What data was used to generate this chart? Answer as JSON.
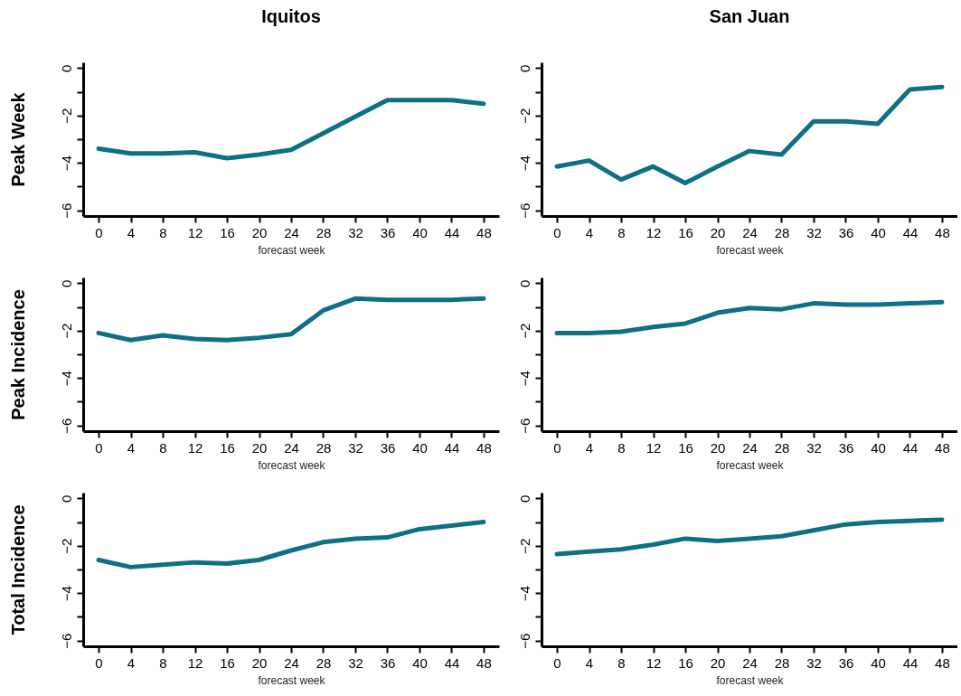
{
  "chart_data": [
    {
      "type": "line",
      "title": "Iquitos",
      "ylabel": "Peak Week",
      "xlabel": "forecast week",
      "line_style": "solid",
      "x": [
        0,
        4,
        8,
        12,
        16,
        20,
        24,
        28,
        32,
        36,
        40,
        44,
        48
      ],
      "series": [
        {
          "color": "#0e6f86",
          "values": [
            -3.4,
            -3.6,
            -3.6,
            -3.55,
            -3.8,
            -3.65,
            -3.45,
            -2.75,
            -2.05,
            -1.35,
            -1.35,
            -1.35,
            -1.5
          ]
        }
      ],
      "xlim": [
        -1.92,
        49.92
      ],
      "ylim": [
        -6.24,
        0.24
      ],
      "xticks": [
        0,
        4,
        8,
        12,
        16,
        20,
        24,
        28,
        32,
        36,
        40,
        44,
        48
      ],
      "yticks": [
        -6,
        {
          "value": -5,
          "label": null
        },
        -4,
        {
          "value": -3,
          "label": null
        },
        -2,
        {
          "value": -1,
          "label": null
        },
        0
      ]
    },
    {
      "type": "line",
      "title": "San Juan",
      "xlabel": "forecast week",
      "line_style": "solid",
      "x": [
        0,
        4,
        8,
        12,
        16,
        20,
        24,
        28,
        32,
        36,
        40,
        44,
        48
      ],
      "series": [
        {
          "color": "#0e6f86",
          "values": [
            -4.15,
            -3.9,
            -4.7,
            -4.15,
            -4.85,
            -4.15,
            -3.5,
            -3.65,
            -2.25,
            -2.25,
            -2.35,
            -0.9,
            -0.8
          ]
        }
      ],
      "xlim": [
        -1.92,
        49.92
      ],
      "ylim": [
        -6.24,
        0.24
      ],
      "xticks": [
        0,
        4,
        8,
        12,
        16,
        20,
        24,
        28,
        32,
        36,
        40,
        44,
        48
      ],
      "yticks": [
        -6,
        {
          "value": -5,
          "label": null
        },
        -4,
        {
          "value": -3,
          "label": null
        },
        -2,
        {
          "value": -1,
          "label": null
        },
        0
      ]
    },
    {
      "type": "line",
      "ylabel": "Peak Incidence",
      "xlabel": "forecast week",
      "line_style": "solid",
      "x": [
        0,
        4,
        8,
        12,
        16,
        20,
        24,
        28,
        32,
        36,
        40,
        44,
        48
      ],
      "series": [
        {
          "color": "#0e6f86",
          "values": [
            -2.1,
            -2.4,
            -2.2,
            -2.35,
            -2.4,
            -2.3,
            -2.15,
            -1.15,
            -0.65,
            -0.7,
            -0.7,
            -0.7,
            -0.65
          ]
        }
      ],
      "xlim": [
        -1.92,
        49.92
      ],
      "ylim": [
        -6.24,
        0.24
      ],
      "xticks": [
        0,
        4,
        8,
        12,
        16,
        20,
        24,
        28,
        32,
        36,
        40,
        44,
        48
      ],
      "yticks": [
        -6,
        {
          "value": -5,
          "label": null
        },
        -4,
        {
          "value": -3,
          "label": null
        },
        -2,
        {
          "value": -1,
          "label": null
        },
        0
      ]
    },
    {
      "type": "line",
      "xlabel": "forecast week",
      "line_style": "solid",
      "x": [
        0,
        4,
        8,
        12,
        16,
        20,
        24,
        28,
        32,
        36,
        40,
        44,
        48
      ],
      "series": [
        {
          "color": "#0e6f86",
          "values": [
            -2.1,
            -2.1,
            -2.05,
            -1.85,
            -1.7,
            -1.25,
            -1.05,
            -1.1,
            -0.85,
            -0.9,
            -0.9,
            -0.85,
            -0.8
          ]
        }
      ],
      "xlim": [
        -1.92,
        49.92
      ],
      "ylim": [
        -6.24,
        0.24
      ],
      "xticks": [
        0,
        4,
        8,
        12,
        16,
        20,
        24,
        28,
        32,
        36,
        40,
        44,
        48
      ],
      "yticks": [
        -6,
        {
          "value": -5,
          "label": null
        },
        -4,
        {
          "value": -3,
          "label": null
        },
        -2,
        {
          "value": -1,
          "label": null
        },
        0
      ]
    },
    {
      "type": "line",
      "ylabel": "Total Incidence",
      "xlabel": "forecast week",
      "line_style": "solid",
      "x": [
        0,
        4,
        8,
        12,
        16,
        20,
        24,
        28,
        32,
        36,
        40,
        44,
        48
      ],
      "series": [
        {
          "color": "#0e6f86",
          "values": [
            -2.6,
            -2.9,
            -2.8,
            -2.7,
            -2.75,
            -2.6,
            -2.2,
            -1.85,
            -1.7,
            -1.65,
            -1.3,
            -1.15,
            -1.0
          ]
        }
      ],
      "xlim": [
        -1.92,
        49.92
      ],
      "ylim": [
        -6.24,
        0.24
      ],
      "xticks": [
        0,
        4,
        8,
        12,
        16,
        20,
        24,
        28,
        32,
        36,
        40,
        44,
        48
      ],
      "yticks": [
        -6,
        {
          "value": -5,
          "label": null
        },
        -4,
        {
          "value": -3,
          "label": null
        },
        -2,
        {
          "value": -1,
          "label": null
        },
        0
      ]
    },
    {
      "type": "line",
      "xlabel": "forecast week",
      "line_style": "solid",
      "x": [
        0,
        4,
        8,
        12,
        16,
        20,
        24,
        28,
        32,
        36,
        40,
        44,
        48
      ],
      "series": [
        {
          "color": "#0e6f86",
          "values": [
            -2.35,
            -2.25,
            -2.15,
            -1.95,
            -1.7,
            -1.8,
            -1.7,
            -1.6,
            -1.35,
            -1.1,
            -1.0,
            -0.95,
            -0.9
          ]
        }
      ],
      "xlim": [
        -1.92,
        49.92
      ],
      "ylim": [
        -6.24,
        0.24
      ],
      "xticks": [
        0,
        4,
        8,
        12,
        16,
        20,
        24,
        28,
        32,
        36,
        40,
        44,
        48
      ],
      "yticks": [
        -6,
        {
          "value": -5,
          "label": null
        },
        -4,
        {
          "value": -3,
          "label": null
        },
        -2,
        {
          "value": -1,
          "label": null
        },
        0
      ]
    }
  ]
}
